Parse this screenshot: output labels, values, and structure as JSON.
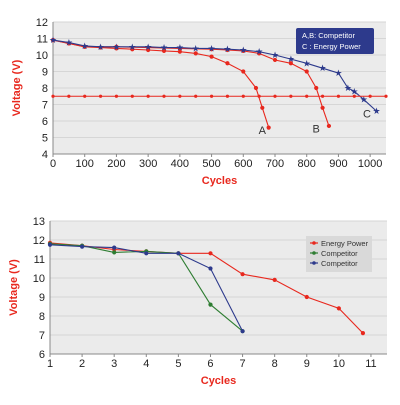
{
  "colors": {
    "energy_power": "#e8281e",
    "competitor_green": "#2e7d32",
    "competitor_blue": "#2d3a8c",
    "plot_bg": "#ebebeb",
    "label_red": "#e8281e"
  },
  "chart_data": [
    {
      "type": "line",
      "xlabel": "Cycles",
      "ylabel": "Voltage (V)",
      "xlim": [
        0,
        1050
      ],
      "ylim": [
        4,
        12
      ],
      "xticks": [
        0,
        100,
        200,
        300,
        400,
        500,
        600,
        700,
        800,
        900,
        1000
      ],
      "yticks": [
        4,
        5,
        6,
        7,
        8,
        9,
        10,
        11,
        12
      ],
      "grid": true,
      "legend": {
        "placement": "top-right",
        "lines": [
          "A,B: Competitor",
          "C : Energy Power"
        ]
      },
      "series": [
        {
          "label": "A",
          "color": "#e8281e",
          "x": [
            0,
            50,
            100,
            150,
            200,
            250,
            300,
            350,
            400,
            450,
            500,
            550,
            600,
            640,
            660,
            680
          ],
          "y": [
            10.9,
            10.7,
            10.5,
            10.45,
            10.4,
            10.35,
            10.3,
            10.25,
            10.2,
            10.1,
            9.9,
            9.5,
            9.0,
            8.0,
            6.8,
            5.6
          ]
        },
        {
          "label": "B",
          "color": "#e8281e",
          "x": [
            0,
            50,
            100,
            200,
            300,
            400,
            500,
            550,
            600,
            650,
            700,
            750,
            800,
            830,
            850,
            870
          ],
          "y": [
            10.9,
            10.7,
            10.5,
            10.5,
            10.45,
            10.4,
            10.35,
            10.3,
            10.25,
            10.1,
            9.7,
            9.5,
            9.0,
            8.0,
            6.8,
            5.7
          ]
        },
        {
          "label": "C",
          "color": "#2d3a8c",
          "x": [
            0,
            50,
            100,
            150,
            200,
            250,
            300,
            350,
            400,
            450,
            500,
            550,
            600,
            650,
            700,
            750,
            800,
            850,
            900,
            930,
            950,
            980,
            1020
          ],
          "y": [
            10.9,
            10.75,
            10.55,
            10.5,
            10.5,
            10.5,
            10.5,
            10.45,
            10.45,
            10.4,
            10.4,
            10.35,
            10.3,
            10.2,
            10.0,
            9.75,
            9.5,
            9.2,
            8.9,
            8.0,
            7.8,
            7.3,
            6.6
          ]
        },
        {
          "label": "",
          "color": "#e8281e",
          "dashed": true,
          "x": [
            0,
            50,
            100,
            150,
            200,
            250,
            300,
            350,
            400,
            450,
            500,
            550,
            600,
            650,
            700,
            750,
            800,
            850,
            900,
            950,
            1000,
            1050
          ],
          "y": [
            7.5,
            7.5,
            7.5,
            7.5,
            7.5,
            7.5,
            7.5,
            7.5,
            7.5,
            7.5,
            7.5,
            7.5,
            7.5,
            7.5,
            7.5,
            7.5,
            7.5,
            7.5,
            7.5,
            7.5,
            7.5,
            7.5
          ]
        }
      ],
      "curve_labels": [
        {
          "text": "A",
          "x": 660,
          "y": 5.2
        },
        {
          "text": "B",
          "x": 830,
          "y": 5.3
        },
        {
          "text": "C",
          "x": 990,
          "y": 6.2
        }
      ]
    },
    {
      "type": "line",
      "xlabel": "Cycles",
      "ylabel": "Voltage (V)",
      "xlim": [
        1,
        11.5
      ],
      "ylim": [
        6,
        13
      ],
      "xticks": [
        1,
        2,
        3,
        4,
        5,
        6,
        7,
        8,
        9,
        10,
        11
      ],
      "yticks": [
        6,
        7,
        8,
        9,
        10,
        11,
        12,
        13
      ],
      "grid": true,
      "legend": {
        "placement": "top-right"
      },
      "series": [
        {
          "name": "Energy Power",
          "color": "#e8281e",
          "x": [
            1,
            2,
            3,
            4,
            5,
            6,
            7,
            8,
            9,
            10,
            10.75
          ],
          "y": [
            11.85,
            11.7,
            11.5,
            11.4,
            11.3,
            11.3,
            10.2,
            9.9,
            9.0,
            8.4,
            7.1
          ]
        },
        {
          "name": "Competitor",
          "color": "#2e7d32",
          "x": [
            1,
            2,
            3,
            4,
            5,
            6,
            7
          ],
          "y": [
            11.8,
            11.7,
            11.35,
            11.4,
            11.3,
            8.6,
            7.2
          ]
        },
        {
          "name": "Competitor",
          "color": "#2d3a8c",
          "x": [
            1,
            2,
            3,
            4,
            5,
            6,
            7
          ],
          "y": [
            11.75,
            11.65,
            11.6,
            11.3,
            11.3,
            10.5,
            7.2
          ]
        }
      ]
    }
  ]
}
